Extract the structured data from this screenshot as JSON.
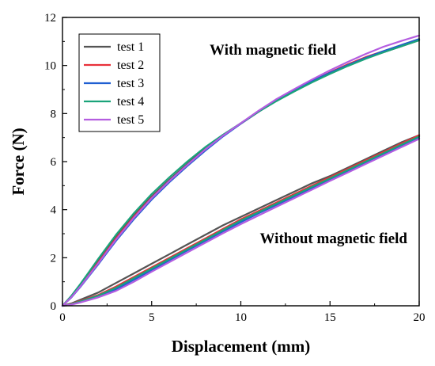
{
  "chart_data": {
    "type": "line",
    "xlabel": "Displacement (mm)",
    "ylabel": "Force (N)",
    "xlim": [
      0,
      20
    ],
    "ylim": [
      0,
      12
    ],
    "xticks": [
      0,
      5,
      10,
      15,
      20
    ],
    "yticks": [
      0,
      2,
      4,
      6,
      8,
      10,
      12
    ],
    "grid": false,
    "legend_position": "top-left",
    "annotations": [
      {
        "text": "With magnetic field",
        "x": 11.8,
        "y": 10.45
      },
      {
        "text": "Without magnetic field",
        "x": 15.2,
        "y": 2.6
      }
    ],
    "series": [
      {
        "name": "test 1",
        "color": "#555555",
        "with_field": {
          "x": [
            0,
            0.5,
            1,
            1.5,
            2,
            2.5,
            3,
            4,
            5,
            6,
            7,
            8,
            9,
            10,
            11,
            12,
            13,
            14,
            15,
            16,
            17,
            18,
            19,
            20
          ],
          "y": [
            0,
            0.4,
            0.85,
            1.35,
            1.85,
            2.35,
            2.85,
            3.75,
            4.55,
            5.25,
            5.9,
            6.55,
            7.1,
            7.6,
            8.1,
            8.55,
            8.95,
            9.35,
            9.7,
            10.0,
            10.3,
            10.55,
            10.8,
            11.05
          ]
        },
        "without_field": {
          "x": [
            0,
            0.5,
            1,
            2,
            3,
            4,
            5,
            6,
            7,
            8,
            9,
            10,
            11,
            12,
            13,
            14,
            15,
            16,
            17,
            18,
            19,
            20
          ],
          "y": [
            0,
            0.1,
            0.25,
            0.55,
            0.95,
            1.35,
            1.75,
            2.15,
            2.55,
            2.95,
            3.35,
            3.7,
            4.05,
            4.4,
            4.75,
            5.1,
            5.4,
            5.75,
            6.1,
            6.45,
            6.8,
            7.1
          ]
        }
      },
      {
        "name": "test 2",
        "color": "#e8313a",
        "with_field": {
          "x": [
            0,
            0.5,
            1,
            1.5,
            2,
            2.5,
            3,
            4,
            5,
            6,
            7,
            8,
            9,
            10,
            11,
            12,
            13,
            14,
            15,
            16,
            17,
            18,
            19,
            20
          ],
          "y": [
            0,
            0.38,
            0.82,
            1.3,
            1.8,
            2.3,
            2.8,
            3.7,
            4.5,
            5.2,
            5.85,
            6.5,
            7.08,
            7.58,
            8.08,
            8.55,
            8.95,
            9.35,
            9.72,
            10.05,
            10.35,
            10.6,
            10.85,
            11.1
          ]
        },
        "without_field": {
          "x": [
            0,
            0.5,
            1,
            2,
            3,
            4,
            5,
            6,
            7,
            8,
            9,
            10,
            11,
            12,
            13,
            14,
            15,
            16,
            17,
            18,
            19,
            20
          ],
          "y": [
            0,
            0.08,
            0.2,
            0.45,
            0.8,
            1.2,
            1.6,
            2.0,
            2.4,
            2.8,
            3.2,
            3.6,
            3.95,
            4.3,
            4.65,
            5.0,
            5.35,
            5.7,
            6.05,
            6.4,
            6.75,
            7.1
          ]
        }
      },
      {
        "name": "test 3",
        "color": "#1f5fd1",
        "with_field": {
          "x": [
            0,
            0.5,
            1,
            1.5,
            2,
            2.5,
            3,
            4,
            5,
            6,
            7,
            8,
            9,
            10,
            11,
            12,
            13,
            14,
            15,
            16,
            17,
            18,
            19,
            20
          ],
          "y": [
            0,
            0.35,
            0.78,
            1.25,
            1.72,
            2.22,
            2.7,
            3.6,
            4.42,
            5.15,
            5.82,
            6.45,
            7.05,
            7.58,
            8.08,
            8.55,
            8.95,
            9.35,
            9.7,
            10.02,
            10.32,
            10.6,
            10.85,
            11.1
          ]
        },
        "without_field": {
          "x": [
            0,
            0.5,
            1,
            2,
            3,
            4,
            5,
            6,
            7,
            8,
            9,
            10,
            11,
            12,
            13,
            14,
            15,
            16,
            17,
            18,
            19,
            20
          ],
          "y": [
            0,
            0.06,
            0.16,
            0.38,
            0.68,
            1.08,
            1.48,
            1.9,
            2.3,
            2.7,
            3.1,
            3.48,
            3.85,
            4.2,
            4.55,
            4.9,
            5.25,
            5.6,
            5.95,
            6.3,
            6.65,
            6.98
          ]
        }
      },
      {
        "name": "test 4",
        "color": "#1aa37a",
        "with_field": {
          "x": [
            0,
            0.5,
            1,
            1.5,
            2,
            2.5,
            3,
            4,
            5,
            6,
            7,
            8,
            9,
            10,
            11,
            12,
            13,
            14,
            15,
            16,
            17,
            18,
            19,
            20
          ],
          "y": [
            0,
            0.42,
            0.9,
            1.42,
            1.95,
            2.45,
            2.95,
            3.85,
            4.65,
            5.35,
            6.0,
            6.6,
            7.12,
            7.6,
            8.08,
            8.52,
            8.92,
            9.3,
            9.65,
            9.98,
            10.28,
            10.55,
            10.8,
            11.05
          ]
        },
        "without_field": {
          "x": [
            0,
            0.5,
            1,
            2,
            3,
            4,
            5,
            6,
            7,
            8,
            9,
            10,
            11,
            12,
            13,
            14,
            15,
            16,
            17,
            18,
            19,
            20
          ],
          "y": [
            0,
            0.07,
            0.18,
            0.42,
            0.75,
            1.15,
            1.55,
            1.95,
            2.35,
            2.75,
            3.15,
            3.55,
            3.9,
            4.25,
            4.6,
            4.95,
            5.3,
            5.65,
            6.0,
            6.35,
            6.7,
            7.05
          ]
        }
      },
      {
        "name": "test 5",
        "color": "#b45de0",
        "with_field": {
          "x": [
            0,
            0.5,
            1,
            1.5,
            2,
            2.5,
            3,
            4,
            5,
            6,
            7,
            8,
            9,
            10,
            11,
            12,
            13,
            14,
            15,
            16,
            17,
            18,
            19,
            20
          ],
          "y": [
            0,
            0.36,
            0.8,
            1.28,
            1.76,
            2.26,
            2.75,
            3.66,
            4.48,
            5.2,
            5.86,
            6.5,
            7.08,
            7.6,
            8.12,
            8.6,
            9.02,
            9.42,
            9.8,
            10.15,
            10.48,
            10.78,
            11.02,
            11.25
          ]
        },
        "without_field": {
          "x": [
            0,
            0.5,
            1,
            2,
            3,
            4,
            5,
            6,
            7,
            8,
            9,
            10,
            11,
            12,
            13,
            14,
            15,
            16,
            17,
            18,
            19,
            20
          ],
          "y": [
            0,
            0.05,
            0.14,
            0.35,
            0.62,
            1.0,
            1.42,
            1.82,
            2.22,
            2.62,
            3.02,
            3.4,
            3.76,
            4.12,
            4.48,
            4.84,
            5.2,
            5.55,
            5.9,
            6.25,
            6.6,
            6.95
          ]
        }
      }
    ]
  }
}
